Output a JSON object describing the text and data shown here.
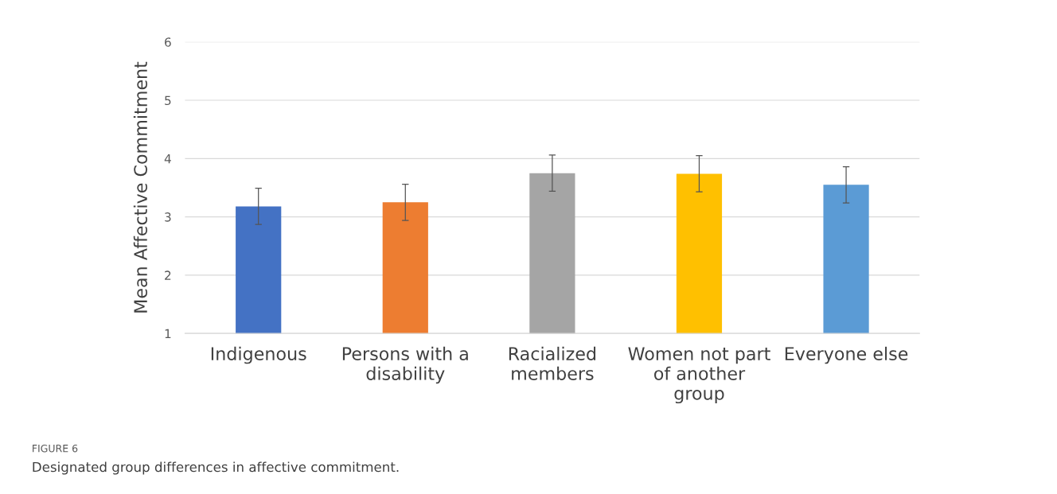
{
  "chart_data": {
    "type": "bar",
    "ylabel": "Mean Affective Commitment",
    "categories": [
      "Indigenous",
      "Persons with a\ndisability",
      "Racialized\nmembers",
      "Women not part\nof another\ngroup",
      "Everyone else"
    ],
    "values": [
      3.18,
      3.25,
      3.75,
      3.74,
      3.55
    ],
    "errors": [
      0.31,
      0.31,
      0.31,
      0.31,
      0.31
    ],
    "colors": [
      "#4472c4",
      "#ed7d31",
      "#a5a5a5",
      "#ffc000",
      "#5b9bd5"
    ],
    "ylim": [
      1,
      6
    ],
    "yticks": [
      1,
      2,
      3,
      4,
      5,
      6
    ],
    "grid": "y",
    "legend": false,
    "annotations": [
      "FIGURE 6",
      "Designated group differences in affective commitment."
    ]
  }
}
